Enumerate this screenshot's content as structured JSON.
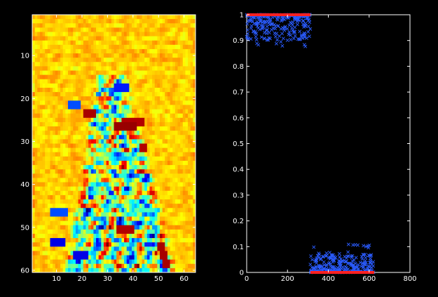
{
  "figure": {
    "background": "#000000",
    "axis_color": "#ffffff"
  },
  "chart_data": [
    {
      "type": "heatmap",
      "colormap": "jet",
      "rows": 60,
      "cols": 64,
      "xlim": [
        0.5,
        64.5
      ],
      "ylim": [
        0.5,
        60.5
      ],
      "y_reversed": true,
      "x_ticks": [
        10,
        20,
        30,
        40,
        50,
        60
      ],
      "y_ticks": [
        10,
        20,
        30,
        40,
        50,
        60
      ],
      "x_tick_labels": [
        "10",
        "20",
        "30",
        "40",
        "50",
        "60"
      ],
      "y_tick_labels": [
        "10",
        "20",
        "30",
        "40",
        "50",
        "60"
      ],
      "value_range": [
        -1,
        1
      ],
      "background_level": 0.35,
      "figure_region": {
        "shape": "trapezoid",
        "row_start": 15,
        "row_end": 60,
        "top_col_range": [
          27,
          37
        ],
        "bottom_col_range": [
          14,
          56
        ]
      },
      "hot_bands": [
        {
          "row": 23,
          "col_start": 21,
          "col_end": 25,
          "value": 0.92
        },
        {
          "row": 25,
          "col_start": 36,
          "col_end": 44,
          "value": 0.9
        },
        {
          "row": 26,
          "col_start": 33,
          "col_end": 41,
          "value": 0.95
        },
        {
          "row": 31,
          "col_start": 43,
          "col_end": 45,
          "value": 0.9
        },
        {
          "row": 50,
          "col_start": 34,
          "col_end": 40,
          "value": 0.9
        },
        {
          "row": 54,
          "col_start": 50,
          "col_end": 52,
          "value": 0.92
        },
        {
          "row": 56,
          "col_start": 51,
          "col_end": 53,
          "value": 0.92
        },
        {
          "row": 58,
          "col_start": 52,
          "col_end": 54,
          "value": 0.92
        }
      ],
      "cold_bands": [
        {
          "row": 17,
          "col_start": 33,
          "col_end": 38,
          "value": -0.7
        },
        {
          "row": 21,
          "col_start": 15,
          "col_end": 19,
          "value": -0.6
        },
        {
          "row": 46,
          "col_start": 8,
          "col_end": 14,
          "value": -0.6
        },
        {
          "row": 53,
          "col_start": 8,
          "col_end": 13,
          "value": -0.8
        },
        {
          "row": 56,
          "col_start": 17,
          "col_end": 22,
          "value": -0.8
        }
      ]
    },
    {
      "type": "scatter",
      "xlim": [
        0,
        800
      ],
      "ylim": [
        0,
        1
      ],
      "x_ticks": [
        0,
        200,
        400,
        600,
        800
      ],
      "y_ticks": [
        0,
        0.1,
        0.2,
        0.3,
        0.4,
        0.5,
        0.6,
        0.7,
        0.8,
        0.9,
        1
      ],
      "x_tick_labels": [
        "0",
        "200",
        "400",
        "600",
        "800"
      ],
      "y_tick_labels": [
        "0",
        "0.1",
        "0.2",
        "0.3",
        "0.4",
        "0.5",
        "0.6",
        "0.7",
        "0.8",
        "0.9",
        "1"
      ],
      "grid": false,
      "series": [
        {
          "marker": "x",
          "color": "#2b5cff",
          "clusters": [
            {
              "x_range": [
                0,
                312
              ],
              "count": 280,
              "typical_range": [
                0.9,
                1.0
              ],
              "min": 0.87
            },
            {
              "x_range": [
                312,
                625
              ],
              "count": 280,
              "typical_range": [
                0.0,
                0.07
              ],
              "max": 0.11
            }
          ]
        },
        {
          "marker": "line",
          "color": "#ff2020",
          "segments": [
            {
              "x": [
                0,
                312
              ],
              "y": [
                1,
                1
              ]
            },
            {
              "x": [
                312,
                625
              ],
              "y": [
                0,
                0
              ]
            }
          ]
        }
      ]
    }
  ]
}
